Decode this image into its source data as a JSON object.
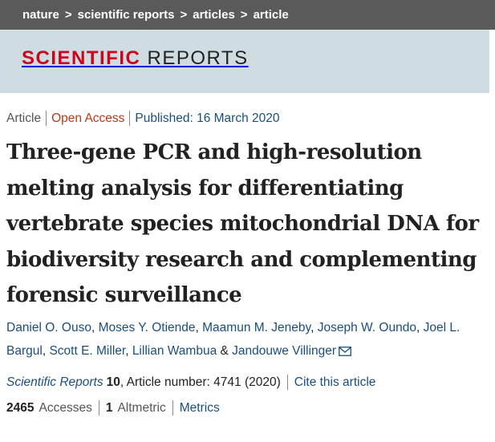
{
  "breadcrumb": {
    "items": [
      "nature",
      "scientific reports",
      "articles",
      "article"
    ],
    "separator": ">"
  },
  "journal_logo": {
    "part1": "SCIENTIFIC",
    "part2": "REPORTS",
    "accent_color": "#d0021b"
  },
  "meta": {
    "type": "Article",
    "access": "Open Access",
    "published": "Published: 16 March 2020"
  },
  "title": "Three-gene PCR and high-resolution melting analysis for differentiating vertebrate species mitochondrial DNA for biodiversity research and complementing forensic surveillance",
  "authors": {
    "list": [
      "Daniel O. Ouso",
      "Moses Y. Otiende",
      "Maamun M. Jeneby",
      "Joseph W. Oundo",
      "Joel L. Bargul",
      "Scott E. Miller",
      "Lillian Wambua",
      "Jandouwe Villinger"
    ],
    "comma": ",",
    "ampersand": "&",
    "corresponding_icon": "mail-icon"
  },
  "citation": {
    "journal": "Scientific Reports",
    "volume": "10",
    "article_number": ", Article number: 4741 (2020)",
    "cite_link": "Cite this article"
  },
  "metrics": {
    "accesses_count": "2465",
    "accesses_label": "Accesses",
    "altmetric_count": "1",
    "altmetric_label": "Altmetric",
    "metrics_link": "Metrics"
  },
  "colors": {
    "link": "#1b4e7a",
    "open_access": "#b5391b",
    "banner_bg": "#cfdde3",
    "breadcrumb_bg": "#5a5a5a"
  }
}
